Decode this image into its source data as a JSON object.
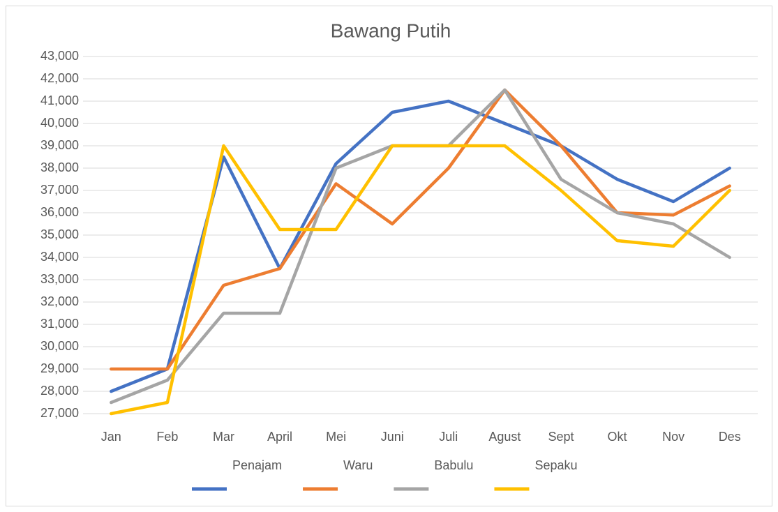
{
  "chart_data": {
    "type": "line",
    "title": "Bawang Putih",
    "categories": [
      "Jan",
      "Feb",
      "Mar",
      "April",
      "Mei",
      "Juni",
      "Juli",
      "Agust",
      "Sept",
      "Okt",
      "Nov",
      "Des"
    ],
    "series": [
      {
        "name": "Penajam",
        "color": "#4472c4",
        "values": [
          28000,
          29000,
          38500,
          33500,
          38200,
          40500,
          41000,
          40000,
          39000,
          37500,
          36500,
          38000
        ]
      },
      {
        "name": "Waru",
        "color": "#ed7d31",
        "values": [
          29000,
          29000,
          32750,
          33500,
          37300,
          35500,
          38000,
          41500,
          39000,
          36000,
          35900,
          37200
        ]
      },
      {
        "name": "Babulu",
        "color": "#a5a5a5",
        "values": [
          27500,
          28500,
          31500,
          31500,
          38000,
          39000,
          39000,
          41500,
          37500,
          36000,
          35500,
          34000
        ]
      },
      {
        "name": "Sepaku",
        "color": "#ffc000",
        "values": [
          27000,
          27500,
          39000,
          35250,
          35250,
          39000,
          39000,
          39000,
          37000,
          34750,
          34500,
          37000
        ]
      }
    ],
    "ylim": [
      27000,
      43000
    ],
    "yticks": [
      {
        "value": 27000,
        "label": "27,000"
      },
      {
        "value": 28000,
        "label": "28,000"
      },
      {
        "value": 29000,
        "label": "29,000"
      },
      {
        "value": 30000,
        "label": "30,000"
      },
      {
        "value": 31000,
        "label": "31,000"
      },
      {
        "value": 32000,
        "label": "32,000"
      },
      {
        "value": 33000,
        "label": "33,000"
      },
      {
        "value": 34000,
        "label": "34,000"
      },
      {
        "value": 35000,
        "label": "35,000"
      },
      {
        "value": 36000,
        "label": "36,000"
      },
      {
        "value": 37000,
        "label": "37,000"
      },
      {
        "value": 38000,
        "label": "38,000"
      },
      {
        "value": 39000,
        "label": "39,000"
      },
      {
        "value": 40000,
        "label": "40,000"
      },
      {
        "value": 41000,
        "label": "41,000"
      },
      {
        "value": 42000,
        "label": "42,000"
      },
      {
        "value": 43000,
        "label": "43,000"
      }
    ],
    "grid": true,
    "legend": "bottom"
  }
}
